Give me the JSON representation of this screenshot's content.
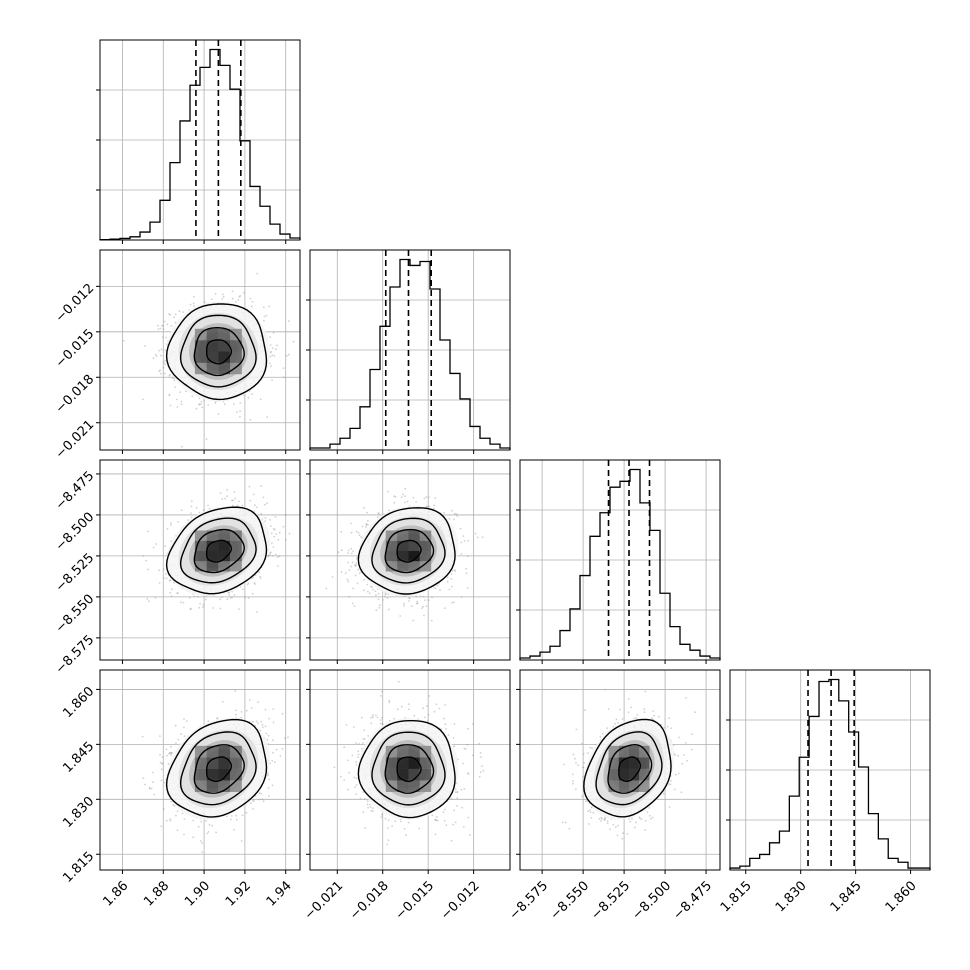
{
  "chart_data": {
    "type": "corner",
    "parameters": 4,
    "quantile_lines": "dashed 16th / 50th / 84th percentiles",
    "axes": [
      {
        "range": [
          1.849,
          1.947
        ],
        "ticks": [
          1.86,
          1.88,
          1.9,
          1.92,
          1.94
        ],
        "tick_labels": [
          "1.86",
          "1.88",
          "1.90",
          "1.92",
          "1.94"
        ],
        "mean": 1.907,
        "std": 0.0115,
        "quantiles": [
          1.896,
          1.907,
          1.918
        ]
      },
      {
        "range": [
          -0.0228,
          -0.0096
        ],
        "ticks": [
          -0.021,
          -0.018,
          -0.015,
          -0.012
        ],
        "tick_labels": [
          "−0.021",
          "−0.018",
          "−0.015",
          "−0.012"
        ],
        "mean": -0.0163,
        "std": 0.0015,
        "quantiles": [
          -0.0178,
          -0.0163,
          -0.0148
        ]
      },
      {
        "range": [
          -8.5885,
          -8.4665
        ],
        "ticks": [
          -8.575,
          -8.55,
          -8.525,
          -8.5,
          -8.475
        ],
        "tick_labels": [
          "−8.575",
          "−8.550",
          "−8.525",
          "−8.500",
          "−8.475"
        ],
        "mean": -8.522,
        "std": 0.0125,
        "quantiles": [
          -8.5345,
          -8.522,
          -8.5095
        ]
      },
      {
        "range": [
          1.8107,
          1.8653
        ],
        "ticks": [
          1.815,
          1.83,
          1.845,
          1.86
        ],
        "tick_labels": [
          "1.815",
          "1.830",
          "1.845",
          "1.860"
        ],
        "mean": 1.8383,
        "std": 0.0063,
        "quantiles": [
          1.832,
          1.8383,
          1.8446
        ]
      }
    ],
    "histograms": [
      {
        "bin_edges": [
          1.849,
          1.8539,
          1.8588,
          1.8637,
          1.8686,
          1.8735,
          1.8784,
          1.8833,
          1.8882,
          1.8931,
          1.898,
          1.9029,
          1.9078,
          1.9127,
          1.9176,
          1.9225,
          1.9274,
          1.9323,
          1.9372,
          1.9421,
          1.947
        ],
        "values": [
          0.002,
          0.004,
          0.008,
          0.016,
          0.04,
          0.09,
          0.2,
          0.39,
          0.6,
          0.78,
          0.87,
          0.96,
          0.88,
          0.76,
          0.5,
          0.27,
          0.17,
          0.08,
          0.03,
          0.01
        ]
      },
      {
        "bin_edges": [
          -0.0228,
          -0.02214,
          -0.02148,
          -0.02082,
          -0.02016,
          -0.0195,
          -0.01884,
          -0.01818,
          -0.01752,
          -0.01686,
          -0.0162,
          -0.01554,
          -0.01488,
          -0.01422,
          -0.01356,
          -0.0129,
          -0.01224,
          -0.01158,
          -0.01092,
          -0.01026,
          -0.0096
        ],
        "values": [
          0.01,
          0.01,
          0.03,
          0.06,
          0.11,
          0.22,
          0.41,
          0.63,
          0.83,
          0.97,
          0.94,
          0.96,
          0.82,
          0.56,
          0.39,
          0.26,
          0.12,
          0.06,
          0.03,
          0.01
        ]
      },
      {
        "bin_edges": [
          -8.5885,
          -8.5824,
          -8.5763,
          -8.5702,
          -8.5641,
          -8.558,
          -8.5519,
          -8.5458,
          -8.5397,
          -8.5336,
          -8.5275,
          -8.5214,
          -8.5153,
          -8.5092,
          -8.5031,
          -8.497,
          -8.4909,
          -8.4848,
          -8.4787,
          -8.4726,
          -8.4665
        ],
        "values": [
          0.01,
          0.02,
          0.04,
          0.07,
          0.15,
          0.26,
          0.43,
          0.63,
          0.75,
          0.88,
          0.91,
          0.97,
          0.8,
          0.66,
          0.34,
          0.17,
          0.08,
          0.05,
          0.02,
          0.01
        ]
      },
      {
        "bin_edges": [
          1.8107,
          1.8134,
          1.8161,
          1.8188,
          1.8215,
          1.8242,
          1.8269,
          1.8296,
          1.8323,
          1.835,
          1.8377,
          1.8404,
          1.8431,
          1.8458,
          1.8485,
          1.8512,
          1.8539,
          1.8566,
          1.8593,
          1.862,
          1.8653
        ],
        "values": [
          0.01,
          0.02,
          0.06,
          0.08,
          0.14,
          0.2,
          0.38,
          0.58,
          0.79,
          0.97,
          0.98,
          0.87,
          0.71,
          0.53,
          0.29,
          0.16,
          0.06,
          0.04,
          0.01,
          0.01
        ]
      }
    ],
    "pairs": [
      {
        "x": 0,
        "y": 1,
        "correlation": 0.0
      },
      {
        "x": 0,
        "y": 2,
        "correlation": 0.22
      },
      {
        "x": 1,
        "y": 2,
        "correlation": 0.1
      },
      {
        "x": 0,
        "y": 3,
        "correlation": 0.22
      },
      {
        "x": 1,
        "y": 3,
        "correlation": 0.0
      },
      {
        "x": 2,
        "y": 3,
        "correlation": 0.25
      }
    ],
    "contour_levels_sigma": [
      0.5,
      1.0,
      1.5,
      2.0
    ],
    "grid": true,
    "colors": {
      "line": "#000000",
      "grid": "#b0b0b0",
      "scatter": "#9a9a9a",
      "density_dark": "#000000"
    }
  }
}
